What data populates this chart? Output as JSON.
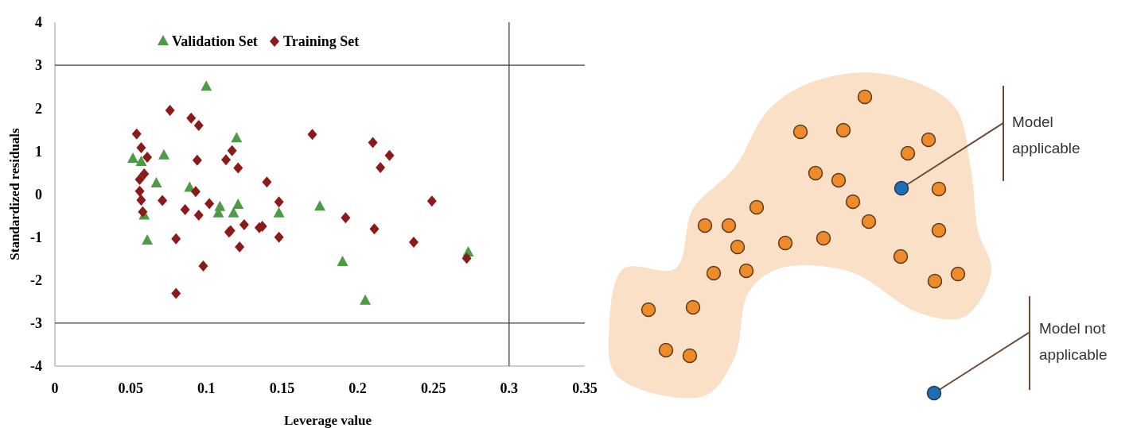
{
  "chart_data": [
    {
      "type": "scatter",
      "xlabel": "Leverage value",
      "ylabel": "Standardized residuals",
      "xlim": [
        0,
        0.35
      ],
      "xticks": [
        0,
        0.05,
        0.1,
        0.15,
        0.2,
        0.25,
        0.3,
        0.35
      ],
      "ylim": [
        -4,
        4
      ],
      "yticks": [
        -4,
        -3,
        -2,
        -1,
        0,
        1,
        2,
        3,
        4
      ],
      "grid": false,
      "legend": "top",
      "ref_lines": [
        {
          "axis": "y",
          "value": 3,
          "color": "#404040"
        },
        {
          "axis": "y",
          "value": -3,
          "color": "#404040"
        },
        {
          "axis": "x",
          "value": 0.3,
          "color": "#404040"
        }
      ],
      "series": [
        {
          "name": "Validation Set",
          "color": "#4e9a47",
          "marker": "triangle",
          "x": [
            0.0515,
            0.057,
            0.059,
            0.061,
            0.067,
            0.072,
            0.089,
            0.1,
            0.12,
            0.109,
            0.108,
            0.118,
            0.121,
            0.148,
            0.175,
            0.19,
            0.205,
            0.273
          ],
          "values": [
            0.82,
            0.75,
            -0.5,
            -1.08,
            0.25,
            0.9,
            0.15,
            2.5,
            1.3,
            -0.3,
            -0.45,
            -0.45,
            -0.25,
            -0.45,
            -0.29,
            -1.58,
            -2.48,
            -1.36
          ]
        },
        {
          "name": "Training Set",
          "color": "#8b1a1a",
          "marker": "diamond",
          "x": [
            0.054,
            0.057,
            0.061,
            0.059,
            0.056,
            0.056,
            0.057,
            0.058,
            0.071,
            0.076,
            0.08,
            0.08,
            0.086,
            0.09,
            0.095,
            0.094,
            0.093,
            0.095,
            0.098,
            0.102,
            0.113,
            0.117,
            0.121,
            0.115,
            0.116,
            0.125,
            0.122,
            0.135,
            0.137,
            0.14,
            0.148,
            0.148,
            0.17,
            0.21,
            0.221,
            0.215,
            0.249,
            0.192,
            0.211,
            0.237,
            0.272
          ],
          "values": [
            1.4,
            1.08,
            0.86,
            0.47,
            0.34,
            0.07,
            -0.14,
            -0.41,
            -0.15,
            1.95,
            -1.04,
            -2.31,
            -0.36,
            1.77,
            1.6,
            0.79,
            0.06,
            -0.49,
            -1.67,
            -0.22,
            0.8,
            1.01,
            0.61,
            -0.88,
            -0.85,
            -0.71,
            -1.23,
            -0.78,
            -0.75,
            0.28,
            -0.18,
            -1.0,
            1.39,
            1.2,
            0.9,
            0.62,
            -0.16,
            -0.55,
            -0.81,
            -1.12,
            -1.49
          ]
        }
      ]
    },
    {
      "type": "other",
      "annotations": [
        "Model applicable",
        "Model not applicable"
      ]
    }
  ]
}
